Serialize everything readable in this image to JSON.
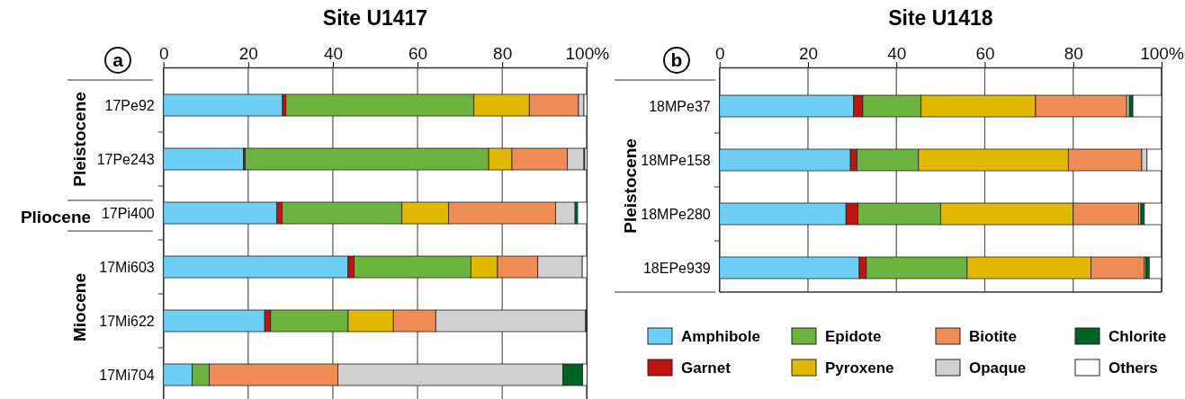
{
  "chart_data": [
    {
      "type": "bar",
      "title": "Site U1417",
      "orientation": "horizontal",
      "stacked": true,
      "xlim": [
        0,
        100
      ],
      "xticks": [
        0,
        20,
        40,
        60,
        80,
        {
          "value": 100,
          "label": "100%"
        }
      ],
      "grid": "x",
      "categories": [
        "17Pe92",
        "17Pe243",
        "17Pi400",
        "17Mi603",
        "17Mi622",
        "17Mi704"
      ],
      "annotations": [
        "a",
        "Pleistocene",
        "Pliocene",
        "Miocene"
      ],
      "series": [
        {
          "color": "#6ecff6",
          "values": [
            28.1,
            18.9,
            26.8,
            43.6,
            23.9,
            6.8
          ]
        },
        {
          "color": "#c0150f",
          "values": [
            0.8,
            0.4,
            1.2,
            1.4,
            1.4,
            0
          ]
        },
        {
          "color": "#6db33f",
          "values": [
            44.4,
            57.5,
            28.3,
            27.6,
            18.3,
            4.0
          ]
        },
        {
          "color": "#e2b900",
          "values": [
            13.1,
            5.5,
            11.0,
            6.3,
            10.7,
            0
          ]
        },
        {
          "color": "#f08c55",
          "values": [
            11.6,
            13.1,
            25.3,
            9.5,
            10.0,
            30.4
          ]
        },
        {
          "color": "#d0d0d0",
          "values": [
            1.3,
            3.9,
            4.6,
            10.5,
            35.4,
            53.1
          ]
        },
        {
          "color": "#006227",
          "values": [
            0,
            0.2,
            0.6,
            0,
            0.3,
            4.7
          ]
        },
        {
          "color": "#ffffff",
          "values": [
            0.7,
            0.5,
            2.2,
            1.1,
            0,
            1.0
          ]
        }
      ]
    },
    {
      "type": "bar",
      "title": "Site U1418",
      "orientation": "horizontal",
      "stacked": true,
      "xlim": [
        0,
        100
      ],
      "xticks": [
        0,
        20,
        40,
        60,
        80,
        {
          "value": 100,
          "label": "100%"
        }
      ],
      "grid": "x",
      "legend": "bottom",
      "categories": [
        "18MPe37",
        "18MPe158",
        "18MPe280",
        "18EPe939"
      ],
      "annotations": [
        "b",
        "Pleistocene"
      ],
      "series": [
        {
          "name": "Amphibole",
          "color": "#6ecff6",
          "values": [
            30.3,
            29.6,
            28.6,
            31.6
          ]
        },
        {
          "name": "Garnet",
          "color": "#c0150f",
          "values": [
            2.1,
            1.5,
            2.7,
            1.6
          ]
        },
        {
          "name": "Epidote",
          "color": "#6db33f",
          "values": [
            13.2,
            13.9,
            18.7,
            22.8
          ]
        },
        {
          "name": "Pyroxene",
          "color": "#e2b900",
          "values": [
            25.9,
            33.9,
            30.0,
            28.0
          ]
        },
        {
          "name": "Biotite",
          "color": "#f08c55",
          "values": [
            20.6,
            16.6,
            14.8,
            12.1
          ]
        },
        {
          "name": "Opaque",
          "color": "#d0d0d0",
          "values": [
            0.6,
            1.2,
            0.5,
            0.3
          ]
        },
        {
          "name": "Chlorite",
          "color": "#006227",
          "values": [
            0.8,
            0,
            0.8,
            0.8
          ]
        },
        {
          "name": "Others",
          "color": "#ffffff",
          "values": [
            6.5,
            3.3,
            3.9,
            2.8
          ]
        }
      ]
    }
  ]
}
